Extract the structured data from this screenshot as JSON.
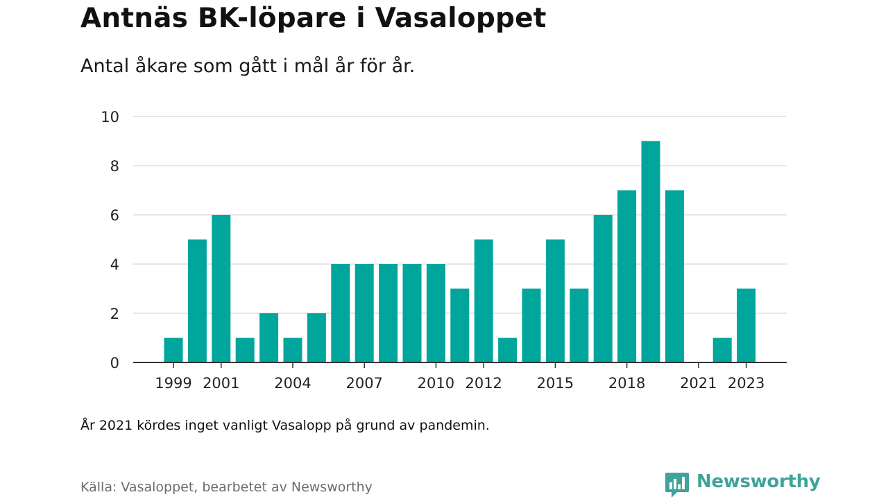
{
  "title": "Antnäs BK-löpare i Vasaloppet",
  "subtitle": "Antal åkare som gått i mål år för år.",
  "note": "År 2021 kördes inget vanligt Vasalopp på grund av pandemin.",
  "source": "Källa: Vasaloppet, bearbetet av Newsworthy",
  "brand": {
    "name": "Newsworthy",
    "icon": "newsworthy-logo-icon",
    "color": "#3ea39a"
  },
  "colors": {
    "bar": "#00a59b",
    "grid": "#dddddd",
    "axis": "#333333",
    "tick_text": "#222222"
  },
  "chart_data": {
    "type": "bar",
    "title": "Antnäs BK-löpare i Vasaloppet",
    "subtitle": "Antal åkare som gått i mål år för år.",
    "xlabel": "",
    "ylabel": "",
    "categories": [
      1999,
      2000,
      2001,
      2002,
      2003,
      2004,
      2005,
      2006,
      2007,
      2008,
      2009,
      2010,
      2011,
      2012,
      2013,
      2014,
      2015,
      2016,
      2017,
      2018,
      2019,
      2020,
      2021,
      2022,
      2023
    ],
    "values": [
      1,
      5,
      6,
      1,
      2,
      1,
      2,
      4,
      4,
      4,
      4,
      4,
      3,
      5,
      1,
      3,
      5,
      3,
      6,
      7,
      9,
      7,
      0,
      1,
      3
    ],
    "ylim": [
      0,
      10
    ],
    "yticks": [
      0,
      2,
      4,
      6,
      8,
      10
    ],
    "xticks": [
      1999,
      2001,
      2004,
      2007,
      2010,
      2012,
      2015,
      2018,
      2021,
      2023
    ],
    "grid": true,
    "legend": "none"
  }
}
